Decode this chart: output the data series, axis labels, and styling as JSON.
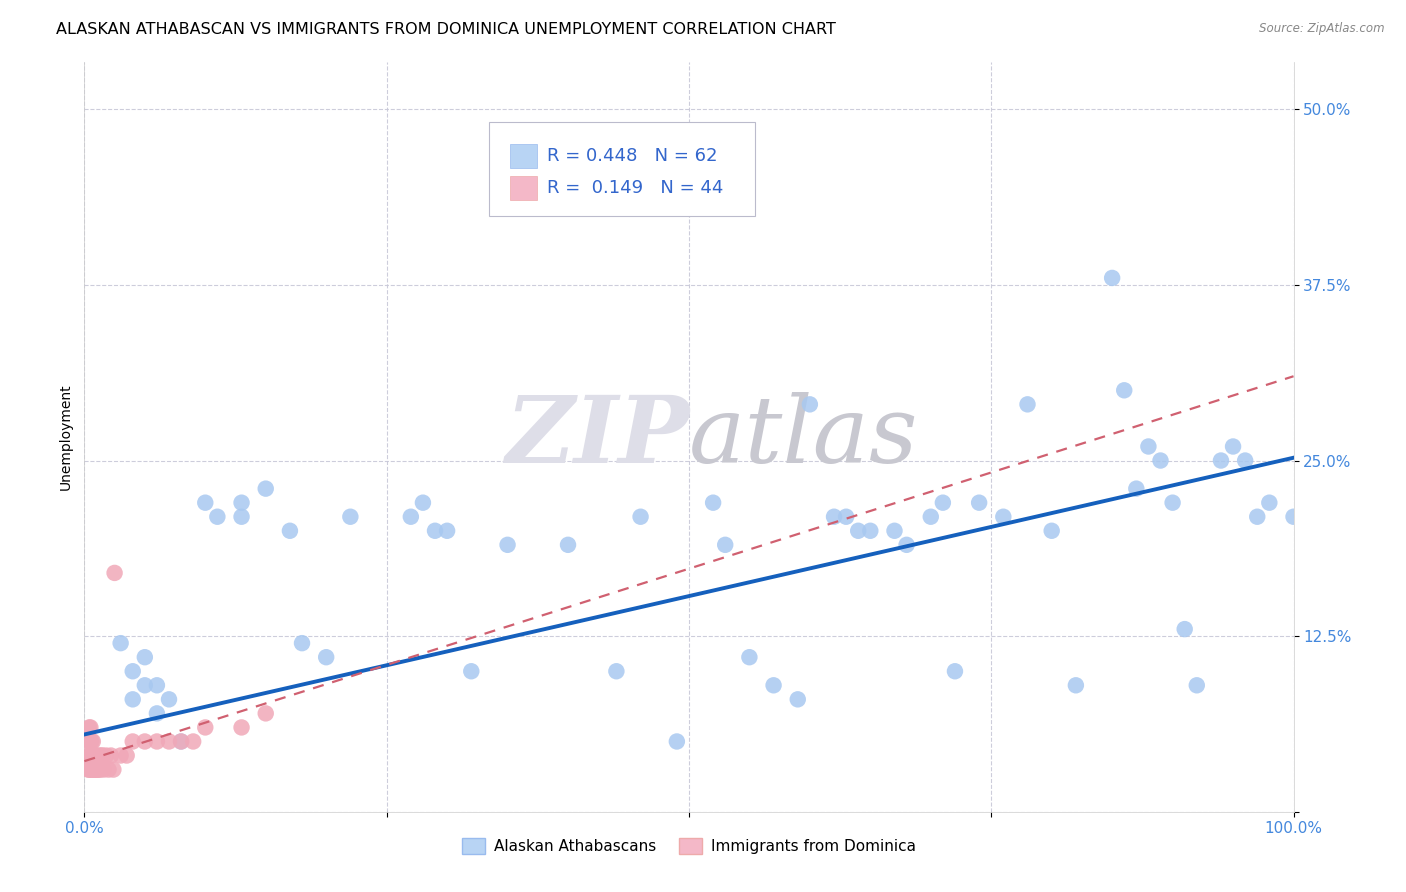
{
  "title": "ALASKAN ATHABASCAN VS IMMIGRANTS FROM DOMINICA UNEMPLOYMENT CORRELATION CHART",
  "source": "Source: ZipAtlas.com",
  "ylabel": "Unemployment",
  "xlim": [
    0.0,
    1.0
  ],
  "ylim": [
    0.0,
    0.5334
  ],
  "xticks": [
    0.0,
    0.25,
    0.5,
    0.75,
    1.0
  ],
  "xtick_labels": [
    "0.0%",
    "",
    "",
    "",
    "100.0%"
  ],
  "yticks": [
    0.0,
    0.125,
    0.25,
    0.375,
    0.5
  ],
  "ytick_labels": [
    "",
    "12.5%",
    "25.0%",
    "37.5%",
    "50.0%"
  ],
  "blue_scatter_x": [
    0.03,
    0.04,
    0.04,
    0.05,
    0.05,
    0.06,
    0.06,
    0.07,
    0.08,
    0.1,
    0.11,
    0.13,
    0.13,
    0.15,
    0.17,
    0.18,
    0.2,
    0.22,
    0.27,
    0.28,
    0.29,
    0.3,
    0.32,
    0.35,
    0.4,
    0.44,
    0.46,
    0.49,
    0.52,
    0.53,
    0.55,
    0.57,
    0.59,
    0.6,
    0.62,
    0.63,
    0.64,
    0.65,
    0.67,
    0.68,
    0.7,
    0.71,
    0.72,
    0.74,
    0.76,
    0.78,
    0.8,
    0.82,
    0.85,
    0.86,
    0.87,
    0.88,
    0.89,
    0.9,
    0.91,
    0.92,
    0.94,
    0.95,
    0.96,
    0.97,
    0.98,
    1.0
  ],
  "blue_scatter_y": [
    0.12,
    0.1,
    0.08,
    0.09,
    0.11,
    0.07,
    0.09,
    0.08,
    0.05,
    0.22,
    0.21,
    0.21,
    0.22,
    0.23,
    0.2,
    0.12,
    0.11,
    0.21,
    0.21,
    0.22,
    0.2,
    0.2,
    0.1,
    0.19,
    0.19,
    0.1,
    0.21,
    0.05,
    0.22,
    0.19,
    0.11,
    0.09,
    0.08,
    0.29,
    0.21,
    0.21,
    0.2,
    0.2,
    0.2,
    0.19,
    0.21,
    0.22,
    0.1,
    0.22,
    0.21,
    0.29,
    0.2,
    0.09,
    0.38,
    0.3,
    0.23,
    0.26,
    0.25,
    0.22,
    0.13,
    0.09,
    0.25,
    0.26,
    0.25,
    0.21,
    0.22,
    0.21
  ],
  "pink_scatter_x": [
    0.003,
    0.003,
    0.004,
    0.004,
    0.004,
    0.005,
    0.005,
    0.005,
    0.005,
    0.006,
    0.006,
    0.006,
    0.007,
    0.007,
    0.007,
    0.008,
    0.008,
    0.009,
    0.009,
    0.01,
    0.01,
    0.011,
    0.012,
    0.012,
    0.013,
    0.014,
    0.015,
    0.016,
    0.018,
    0.02,
    0.022,
    0.024,
    0.025,
    0.03,
    0.035,
    0.04,
    0.05,
    0.06,
    0.07,
    0.08,
    0.09,
    0.1,
    0.13,
    0.15
  ],
  "pink_scatter_y": [
    0.03,
    0.04,
    0.03,
    0.05,
    0.06,
    0.03,
    0.04,
    0.05,
    0.06,
    0.03,
    0.04,
    0.05,
    0.03,
    0.04,
    0.05,
    0.03,
    0.04,
    0.03,
    0.04,
    0.03,
    0.04,
    0.03,
    0.03,
    0.04,
    0.03,
    0.04,
    0.04,
    0.03,
    0.04,
    0.03,
    0.04,
    0.03,
    0.17,
    0.04,
    0.04,
    0.05,
    0.05,
    0.05,
    0.05,
    0.05,
    0.05,
    0.06,
    0.06,
    0.07
  ],
  "blue_R": 0.448,
  "blue_N": 62,
  "pink_R": 0.149,
  "pink_N": 44,
  "blue_line_x": [
    0.0,
    1.0
  ],
  "blue_line_y": [
    0.055,
    0.252
  ],
  "pink_line_x": [
    0.0,
    1.0
  ],
  "pink_line_y": [
    0.036,
    0.31
  ],
  "scatter_color_blue": "#a8c8f0",
  "scatter_color_pink": "#f0a8b8",
  "line_color_blue": "#1560bd",
  "line_color_pink": "#d06070",
  "legend_box_color_blue": "#b8d4f4",
  "legend_box_color_pink": "#f4b8c8",
  "bg_color": "#ffffff",
  "grid_color": "#c8c8d8",
  "watermark_color": "#dedee8",
  "title_fontsize": 11.5,
  "axis_label_fontsize": 10,
  "tick_fontsize": 11,
  "legend_fontsize": 13
}
